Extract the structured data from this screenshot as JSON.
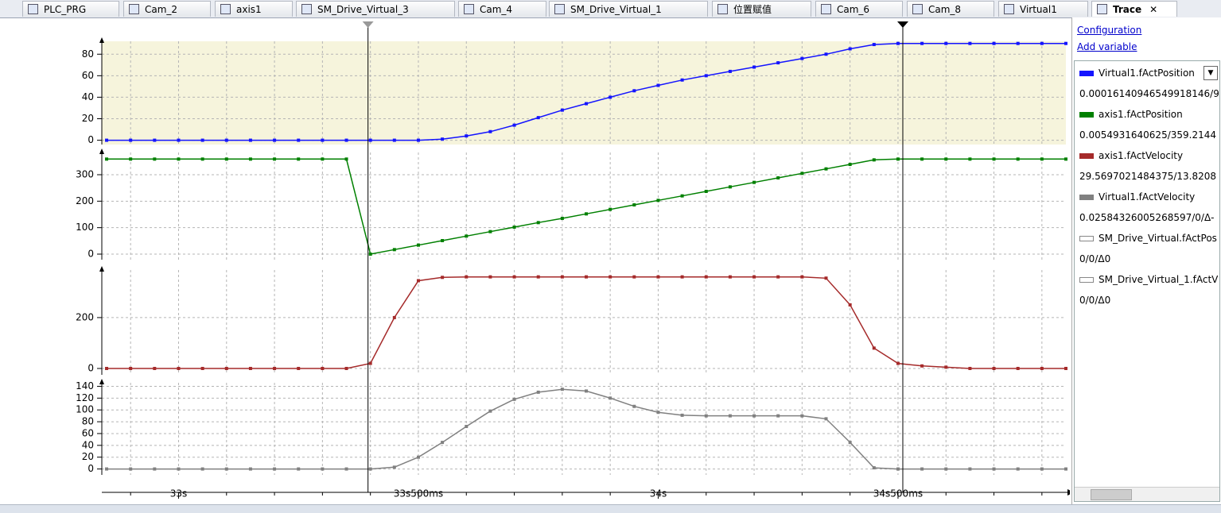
{
  "tabs": [
    "PLC_PRG",
    "Cam_2",
    "axis1",
    "SM_Drive_Virtual_3",
    "Cam_4",
    "SM_Drive_Virtual_1",
    "位置赋值",
    "Cam_6",
    "Cam_8",
    "Virtual1",
    "Trace"
  ],
  "links": [
    "Configuration",
    "Add variable"
  ],
  "extra_variables": [
    {
      "name": "SM_Drive_Virtual.fActPos",
      "readout": "0/0/Δ0"
    },
    {
      "name": "SM_Drive_Virtual_1.fActV",
      "readout": "0/0/Δ0"
    }
  ],
  "chart_data": {
    "type": "line",
    "x": [
      32.85,
      32.9,
      32.95,
      33,
      33.05,
      33.1,
      33.15,
      33.2,
      33.25,
      33.3,
      33.35,
      33.4,
      33.45,
      33.5,
      33.55,
      33.6,
      33.65,
      33.7,
      33.75,
      33.8,
      33.85,
      33.9,
      33.95,
      34,
      34.05,
      34.1,
      34.15,
      34.2,
      34.25,
      34.3,
      34.35,
      34.4,
      34.45,
      34.5,
      34.55,
      34.6,
      34.65,
      34.7,
      34.75,
      34.8,
      34.85
    ],
    "xlim": [
      32.84,
      34.85
    ],
    "xticks": [
      {
        "value": 33,
        "label": "33s"
      },
      {
        "value": 33.5,
        "label": "33s500ms"
      },
      {
        "value": 34,
        "label": "34s"
      },
      {
        "value": 34.5,
        "label": "34s500ms"
      }
    ],
    "xgrid": [
      32.9,
      33,
      33.1,
      33.2,
      33.3,
      33.4,
      33.5,
      33.6,
      33.7,
      33.8,
      33.9,
      34,
      34.1,
      34.2,
      34.3,
      34.4,
      34.5,
      34.6,
      34.7,
      34.8
    ],
    "cursors": [
      33.395,
      34.51
    ],
    "grid": true,
    "series": [
      {
        "name": "Virtual1.fActPosition",
        "color": "#1414ff",
        "readout": "0.00016140946549918146/9",
        "ylim": [
          -4,
          92
        ],
        "yticks": [
          0,
          20,
          40,
          60,
          80
        ],
        "values": [
          0,
          0,
          0,
          0,
          0,
          0,
          0,
          0,
          0,
          0,
          0,
          0,
          0,
          0,
          1,
          4,
          8,
          14,
          21,
          28,
          34,
          40,
          46,
          51,
          56,
          60,
          64,
          68,
          72,
          76,
          80,
          85,
          89,
          90,
          90,
          90,
          90,
          90,
          90,
          90,
          90
        ]
      },
      {
        "name": "axis1.fActPosition",
        "color": "#008000",
        "readout": "0.0054931640625/359.2144",
        "ylim": [
          -21,
          384
        ],
        "yticks": [
          0,
          100,
          200,
          300
        ],
        "values": [
          359,
          359,
          359,
          359,
          359,
          359,
          359,
          359,
          359,
          359,
          359,
          0,
          17,
          34,
          51,
          68,
          85,
          102,
          119,
          135,
          152,
          169,
          186,
          203,
          220,
          237,
          254,
          271,
          288,
          305,
          322,
          339,
          356,
          359,
          359,
          359,
          359,
          359,
          359,
          359,
          359
        ]
      },
      {
        "name": "axis1.fActVelocity",
        "color": "#a52a2a",
        "readout": "29.5697021484375/13.8208",
        "ylim": [
          -25,
          387
        ],
        "yticks": [
          0,
          200
        ],
        "values": [
          0,
          0,
          0,
          0,
          0,
          0,
          0,
          0,
          0,
          0,
          0,
          20,
          200,
          345,
          358,
          360,
          360,
          360,
          360,
          360,
          360,
          360,
          360,
          360,
          360,
          360,
          360,
          360,
          360,
          360,
          355,
          250,
          80,
          20,
          10,
          5,
          0,
          0,
          0,
          0,
          0
        ]
      },
      {
        "name": "Virtual1.fActVelocity",
        "color": "#808080",
        "readout": "0.02584326005268597/0/Δ-",
        "ylim": [
          -10,
          146
        ],
        "yticks": [
          0,
          20,
          40,
          60,
          80,
          100,
          120,
          140
        ],
        "values": [
          0,
          0,
          0,
          0,
          0,
          0,
          0,
          0,
          0,
          0,
          0,
          0,
          3,
          20,
          45,
          72,
          98,
          118,
          130,
          135,
          132,
          120,
          106,
          96,
          91,
          90,
          90,
          90,
          90,
          90,
          85,
          45,
          2,
          0,
          0,
          0,
          0,
          0,
          0,
          0,
          0
        ]
      }
    ]
  }
}
